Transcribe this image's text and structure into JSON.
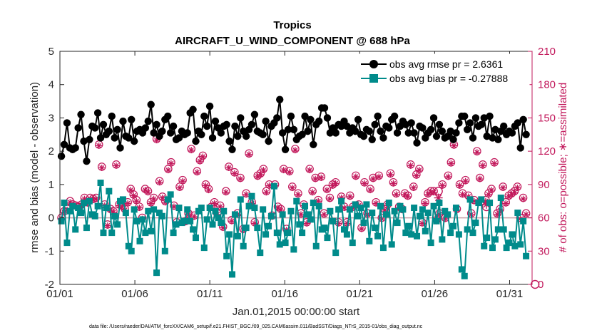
{
  "chart_data": {
    "type": "line",
    "title": "Tropics",
    "subtitle": "AIRCRAFT_U_WIND_COMPONENT @ 688 hPa",
    "xlabel": "Jan.01,2015 00:00:00 start",
    "ylabel": "rmse and bias (model - observation)",
    "y2label": "# of obs: o=possible; ∗=assimilated",
    "footnote": "data file: /Users/raeder/DAI/ATM_forcXX/CAM6_setup/f.e21.FHIST_BGC.f09_025.CAM6assim.011/BadSST/Diags_NTrS_2015-01/obs_diag_output.nc",
    "xlim": [
      0,
      31.5
    ],
    "ylim": [
      -2,
      5
    ],
    "y2lim": [
      0,
      210
    ],
    "xticks": [
      0,
      5,
      10,
      15,
      20,
      25,
      30
    ],
    "xticklabels": [
      "01/01",
      "01/06",
      "01/11",
      "01/16",
      "01/21",
      "01/26",
      "01/31"
    ],
    "yticks": [
      -2,
      -1,
      0,
      1,
      2,
      3,
      4,
      5
    ],
    "y2ticks": [
      0,
      30,
      60,
      90,
      120,
      150,
      180,
      210
    ],
    "zero_line": 0,
    "colors": {
      "rmse": "#000000",
      "bias": "#008b8b",
      "obs": "#c2185b",
      "zero": "#c8a0a8"
    },
    "series": [
      {
        "name": "obs avg rmse pr = 2.6361",
        "values": [
          1.85,
          2.2,
          2.85,
          2.1,
          2.05,
          2.1,
          2.7,
          3.1,
          2.3,
          1.7,
          2.35,
          2.75,
          2.7,
          3.15,
          2.4,
          2.8,
          2.5,
          2.6,
          3.05,
          2.4,
          2.65,
          2.1,
          2.9,
          2.45,
          2.4,
          2.95,
          2.3,
          2.6,
          2.65,
          2.55,
          2.7,
          2.9,
          3.4,
          2.55,
          2.8,
          2.45,
          2.6,
          2.95,
          3.05,
          2.55,
          2.75,
          2.35,
          2.4,
          2.6,
          2.5,
          2.55,
          3.15,
          3.25,
          2.3,
          2.6,
          2.5,
          3.05,
          2.75,
          3.35,
          2.4,
          2.9,
          2.7,
          2.55,
          2.75,
          2.8,
          2.3,
          2.05,
          2.75,
          2.45,
          3.0,
          2.6,
          2.45,
          2.65,
          2.8,
          3.1,
          2.6,
          2.55,
          2.5,
          2.9,
          2.3,
          2.75,
          2.85,
          3.0,
          3.55,
          2.55,
          2.05,
          2.65,
          3.05,
          2.65,
          2.35,
          2.45,
          2.5,
          3.05,
          2.6,
          2.95,
          2.2,
          2.8,
          2.9,
          3.3,
          3.3,
          3.0,
          2.55,
          2.7,
          2.55,
          2.8,
          2.75,
          2.9,
          2.75,
          2.55,
          2.7,
          2.6,
          2.95,
          2.5,
          2.45,
          2.65,
          2.6,
          2.35,
          2.8,
          3.05,
          2.6,
          2.4,
          2.75,
          2.7,
          2.95,
          3.05,
          2.55,
          2.75,
          2.9,
          2.8,
          2.55,
          2.85,
          2.55,
          2.25,
          2.75,
          2.7,
          2.4,
          2.55,
          2.65,
          3.0,
          2.45,
          2.8,
          2.6,
          2.4,
          2.45,
          2.6,
          2.35,
          2.55,
          2.85,
          3.05,
          3.05,
          2.65,
          2.85,
          2.4,
          3.0,
          2.75,
          2.8,
          3.0,
          2.45,
          3.05,
          2.4,
          2.65,
          2.35,
          2.6,
          2.75,
          2.5,
          2.6,
          2.55,
          2.75,
          2.85,
          2.1,
          2.95,
          2.5
        ]
      },
      {
        "name": "obs avg bias pr = -0.27888",
        "values": [
          -0.1,
          0.45,
          -0.75,
          0.2,
          0.35,
          -0.35,
          0.3,
          0.15,
          0.45,
          -0.3,
          0.5,
          0.1,
          0.05,
          0.35,
          1.05,
          -0.45,
          0.3,
          0.8,
          -0.45,
          0.05,
          -0.2,
          0.5,
          0.55,
          0.15,
          -0.85,
          -1.0,
          0.25,
          -0.1,
          -0.7,
          -0.05,
          -0.45,
          0.2,
          -0.4,
          0.25,
          -1.65,
          0.15,
          0.05,
          -1.0,
          0.55,
          0.7,
          -0.45,
          -0.2,
          0.3,
          -0.15,
          -0.1,
          0.25,
          -0.1,
          -0.35,
          -0.6,
          0.2,
          0.3,
          -0.9,
          -0.05,
          0.3,
          -0.2,
          0.2,
          0.0,
          -0.15,
          0.2,
          -1.15,
          -0.5,
          -1.7,
          0.1,
          -0.55,
          0.55,
          -0.85,
          -0.3,
          0.35,
          0.65,
          0.3,
          -0.3,
          -1.05,
          0.25,
          -0.5,
          -0.25,
          0.05,
          0.95,
          -0.45,
          -0.8,
          0.1,
          -0.75,
          -0.45,
          0.2,
          -0.95,
          0.5,
          -0.2,
          -0.45,
          0.35,
          0.1,
          -0.05,
          0.45,
          -0.85,
          0.35,
          -0.35,
          -0.3,
          -0.6,
          0.2,
          -0.1,
          -1.05,
          0.25,
          0.5,
          -0.35,
          -0.5,
          0.25,
          -0.75,
          0.4,
          0.05,
          0.3,
          -0.15,
          0.4,
          -0.7,
          0.15,
          -0.3,
          -0.55,
          0.35,
          -0.9,
          0.1,
          0.45,
          -0.8,
          0.2,
          -0.15,
          0.35,
          0.25,
          -0.45,
          -0.25,
          -0.5,
          0.3,
          -0.55,
          0.05,
          0.25,
          -0.4,
          0.15,
          -0.75,
          0.35,
          -0.1,
          0.45,
          -0.65,
          0.2,
          0.1,
          -0.45,
          -0.25,
          0.3,
          -0.5,
          -1.55,
          -1.75,
          -0.35,
          0.55,
          -0.45,
          -0.15,
          0.45,
          0.55,
          -0.85,
          -0.6,
          0.45,
          -0.9,
          -0.65,
          -0.35,
          0.6,
          -0.35,
          -0.9,
          -0.75,
          -0.5,
          -0.85,
          0.15,
          -0.8,
          -0.1,
          -1.15
        ]
      },
      {
        "name": "# of obs possible",
        "axis": "right",
        "values": [
          60,
          66,
          68,
          75,
          72,
          71,
          70,
          72,
          78,
          74,
          78,
          77,
          78,
          126,
          106,
          72,
          54,
          68,
          66,
          108,
          72,
          71,
          68,
          74,
          86,
          81,
          76,
          70,
          60,
          86,
          84,
          74,
          78,
          131,
          93,
          79,
          75,
          104,
          110,
          71,
          56,
          88,
          94,
          57,
          64,
          122,
          62,
          102,
          112,
          116,
          90,
          86,
          70,
          74,
          64,
          71,
          52,
          84,
          106,
          58,
          101,
          64,
          96,
          50,
          82,
          118,
          74,
          56,
          98,
          100,
          104,
          84,
          90,
          62,
          90,
          70,
          68,
          104,
          50,
          102,
          88,
          122,
          82,
          64,
          72,
          56,
          104,
          84,
          96,
          76,
          97,
          64,
          86,
          78,
          90,
          92,
          56,
          79,
          70,
          56,
          80,
          70,
          98,
          72,
          51,
          92,
          64,
          86,
          96,
          74,
          98,
          60,
          68,
          72,
          100,
          92,
          82,
          70,
          68,
          82,
          80,
          108,
          88,
          99,
          104,
          56,
          74,
          82,
          84,
          84,
          58,
          64,
          90,
          60,
          98,
          110,
          126,
          68,
          90,
          82,
          94,
          80,
          64,
          76,
          120,
          96,
          108,
          76,
          82,
          86,
          110,
          64,
          68,
          88,
          74,
          80,
          82,
          84,
          88,
          60,
          78,
          64
        ]
      },
      {
        "name": "# of obs assimilated",
        "axis": "right",
        "values": [
          59,
          65,
          67,
          74,
          71,
          70,
          69,
          71,
          77,
          73,
          77,
          76,
          77,
          125,
          105,
          71,
          53,
          67,
          65,
          107,
          71,
          70,
          67,
          73,
          85,
          80,
          75,
          69,
          59,
          85,
          83,
          73,
          77,
          130,
          92,
          78,
          74,
          103,
          109,
          70,
          55,
          87,
          93,
          56,
          63,
          121,
          61,
          101,
          111,
          115,
          89,
          85,
          69,
          73,
          63,
          70,
          51,
          83,
          105,
          57,
          100,
          63,
          95,
          49,
          81,
          117,
          73,
          55,
          97,
          99,
          103,
          83,
          89,
          61,
          89,
          69,
          67,
          103,
          49,
          101,
          87,
          121,
          81,
          63,
          71,
          55,
          103,
          83,
          95,
          75,
          96,
          63,
          85,
          77,
          89,
          91,
          55,
          78,
          69,
          55,
          79,
          69,
          97,
          71,
          50,
          91,
          63,
          85,
          95,
          73,
          97,
          59,
          67,
          71,
          99,
          91,
          81,
          69,
          67,
          81,
          79,
          107,
          87,
          98,
          103,
          55,
          73,
          81,
          83,
          83,
          57,
          63,
          89,
          59,
          97,
          109,
          125,
          67,
          89,
          81,
          93,
          79,
          63,
          75,
          119,
          95,
          107,
          75,
          81,
          85,
          109,
          63,
          67,
          87,
          73,
          79,
          81,
          83,
          87,
          59,
          77,
          63
        ]
      }
    ],
    "outliers_possible": [
      {
        "x": 25.25,
        "y": 84
      },
      {
        "x": 28.45,
        "y": 70
      },
      {
        "x": 31.7,
        "y": 0
      }
    ],
    "outliers_assimilated": [
      {
        "x": 25.25,
        "y": 78
      },
      {
        "x": 28.45,
        "y": 72
      }
    ]
  }
}
